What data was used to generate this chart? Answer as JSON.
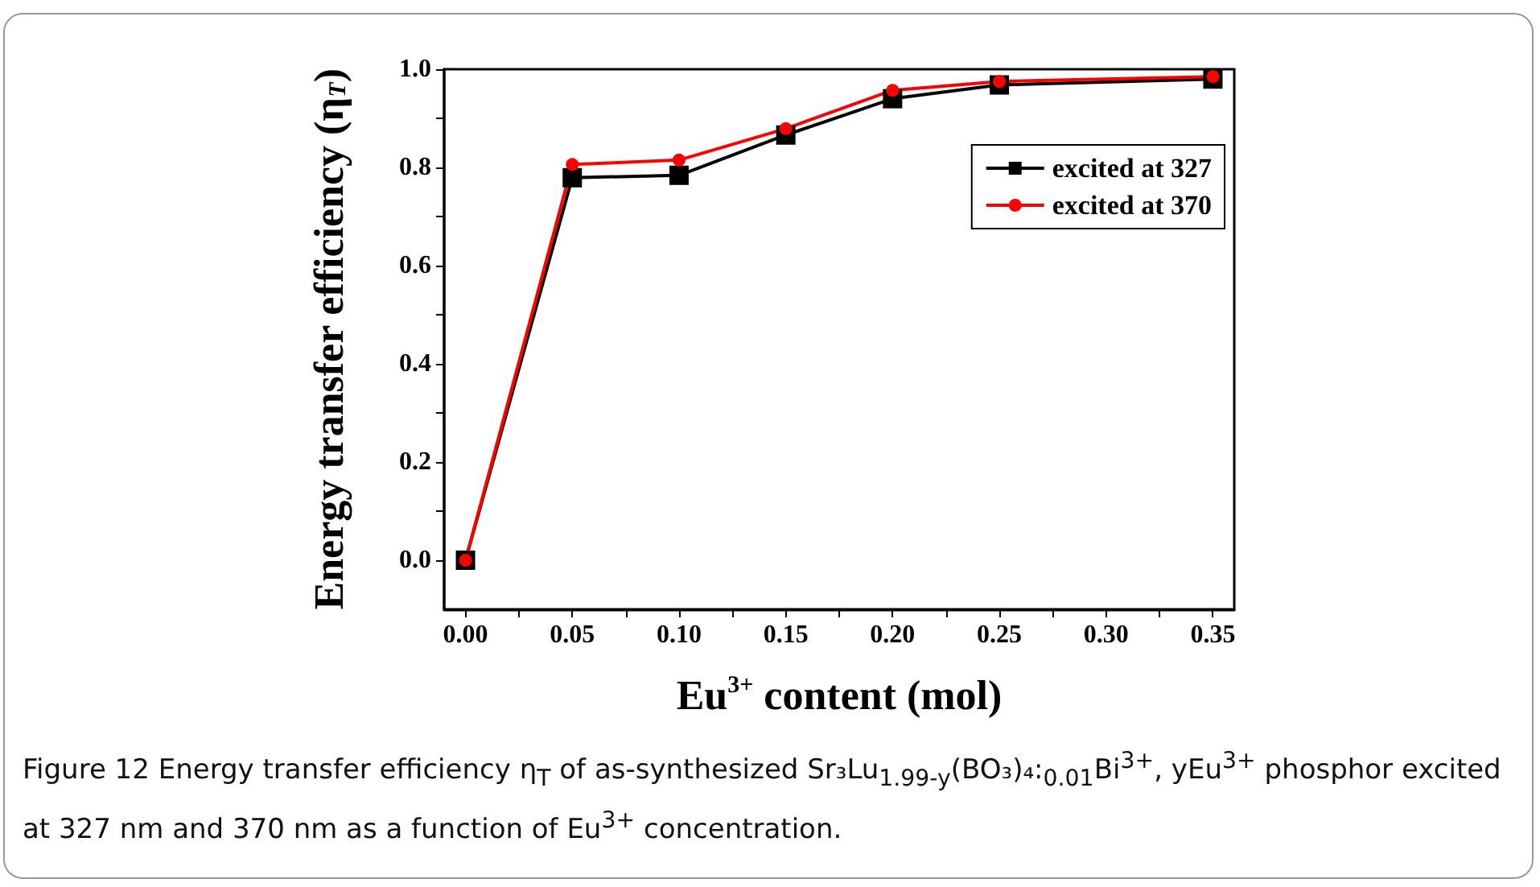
{
  "chart_data": {
    "type": "line",
    "xlabel": "Eu$^{3+}$ content (mol)",
    "ylabel": "Energy transfer efficiency (η$_{T}$)",
    "x": [
      0,
      0.05,
      0.1,
      0.15,
      0.2,
      0.25,
      0.35
    ],
    "series": [
      {
        "name": "excited at 327",
        "color": "#000000",
        "marker": "square",
        "values": [
          0,
          0.779,
          0.784,
          0.866,
          0.94,
          0.968,
          0.98
        ]
      },
      {
        "name": "excited at 370",
        "color": "#ff0000",
        "marker": "circle",
        "values": [
          0,
          0.806,
          0.815,
          0.879,
          0.957,
          0.975,
          0.985
        ]
      }
    ],
    "xlim": [
      -0.01,
      0.36
    ],
    "xticks": [
      {
        "value": 0,
        "label": "0.00"
      },
      {
        "value": 0.025,
        "label": null
      },
      {
        "value": 0.05,
        "label": "0.05"
      },
      {
        "value": 0.075,
        "label": null
      },
      {
        "value": 0.1,
        "label": "0.10"
      },
      {
        "value": 0.125,
        "label": null
      },
      {
        "value": 0.15,
        "label": "0.15"
      },
      {
        "value": 0.175,
        "label": null
      },
      {
        "value": 0.2,
        "label": "0.20"
      },
      {
        "value": 0.225,
        "label": null
      },
      {
        "value": 0.25,
        "label": "0.25"
      },
      {
        "value": 0.275,
        "label": null
      },
      {
        "value": 0.3,
        "label": "0.30"
      },
      {
        "value": 0.325,
        "label": null
      },
      {
        "value": 0.35,
        "label": "0.35"
      }
    ],
    "ylim": [
      -0.1,
      1.0
    ],
    "yticks": [
      {
        "value": 0,
        "label": "0.0"
      },
      {
        "value": 0.1,
        "label": null
      },
      {
        "value": 0.2,
        "label": "0.2"
      },
      {
        "value": 0.3,
        "label": null
      },
      {
        "value": 0.4,
        "label": "0.4"
      },
      {
        "value": 0.5,
        "label": null
      },
      {
        "value": 0.6,
        "label": "0.6"
      },
      {
        "value": 0.7,
        "label": null
      },
      {
        "value": 0.8,
        "label": "0.8"
      },
      {
        "value": 0.9,
        "label": null
      },
      {
        "value": 1.0,
        "label": "1.0"
      }
    ],
    "grid": false,
    "legend": "top right",
    "line_style": "solid",
    "annotations": [
      "Figure 12 Energy transfer efficiency η$_{T}$ of as-synthesized Sr₃Lu$_{1.99-y}$(BO₃)₄:$_{0.01}$Bi$^{3+}$, yEu$^{3+}$ phosphor excited at 327 nm and 370 nm as a function of Eu$^{3+}$ concentration."
    ]
  }
}
